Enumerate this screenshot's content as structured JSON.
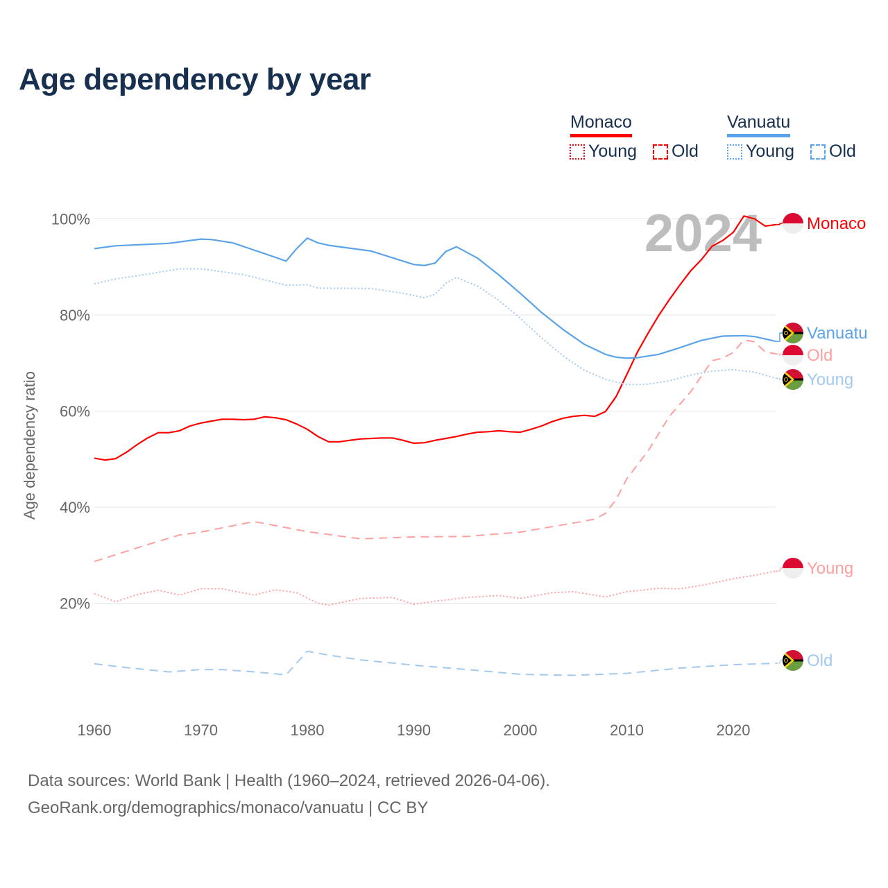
{
  "title": "Age dependency by year",
  "legend": {
    "countries": [
      {
        "name": "Monaco",
        "color": "#ff0000",
        "light": "#ff9f9f"
      },
      {
        "name": "Vanuatu",
        "color": "#5ba3e8",
        "light": "#a3c9f1"
      }
    ],
    "young_label": "Young",
    "old_label": "Old"
  },
  "year_overlay": "2024",
  "footer": {
    "line1": "Data sources: World Bank | Health (1960–2024, retrieved 2026-04-06).",
    "line2": "GeoRank.org/demographics/monaco/vanuatu | CC BY"
  },
  "chart_data": {
    "type": "line",
    "title": "Age dependency by year",
    "xlabel": "",
    "ylabel": "Age dependency ratio",
    "xlim": [
      1960,
      2024
    ],
    "ylim": [
      0,
      100
    ],
    "x_ticks": [
      1960,
      1970,
      1980,
      1990,
      2000,
      2010,
      2020
    ],
    "y_ticks": [
      20,
      40,
      60,
      80,
      100
    ],
    "y_tick_labels": [
      "20%",
      "40%",
      "60%",
      "80%",
      "100%"
    ],
    "grid": true,
    "legend_position": "top-right",
    "series": [
      {
        "name": "Monaco",
        "style": "solid",
        "end_label": "Monaco",
        "points": [
          [
            1960,
            50.2
          ],
          [
            1961,
            49.8
          ],
          [
            1962,
            50.1
          ],
          [
            1963,
            51.4
          ],
          [
            1964,
            53
          ],
          [
            1965,
            54.4
          ],
          [
            1966,
            55.5
          ],
          [
            1967,
            55.5
          ],
          [
            1968,
            55.9
          ],
          [
            1969,
            56.9
          ],
          [
            1970,
            57.5
          ],
          [
            1971,
            57.9
          ],
          [
            1972,
            58.3
          ],
          [
            1973,
            58.3
          ],
          [
            1974,
            58.2
          ],
          [
            1975,
            58.3
          ],
          [
            1976,
            58.8
          ],
          [
            1977,
            58.6
          ],
          [
            1978,
            58.2
          ],
          [
            1979,
            57.3
          ],
          [
            1980,
            56.2
          ],
          [
            1981,
            54.7
          ],
          [
            1982,
            53.6
          ],
          [
            1983,
            53.6
          ],
          [
            1984,
            53.9
          ],
          [
            1985,
            54.2
          ],
          [
            1986,
            54.3
          ],
          [
            1987,
            54.4
          ],
          [
            1988,
            54.4
          ],
          [
            1989,
            53.9
          ],
          [
            1990,
            53.3
          ],
          [
            1991,
            53.4
          ],
          [
            1992,
            53.9
          ],
          [
            1993,
            54.3
          ],
          [
            1994,
            54.7
          ],
          [
            1995,
            55.2
          ],
          [
            1996,
            55.6
          ],
          [
            1997,
            55.7
          ],
          [
            1998,
            55.9
          ],
          [
            1999,
            55.7
          ],
          [
            2000,
            55.6
          ],
          [
            2001,
            56.2
          ],
          [
            2002,
            56.9
          ],
          [
            2003,
            57.8
          ],
          [
            2004,
            58.5
          ],
          [
            2005,
            58.9
          ],
          [
            2006,
            59.1
          ],
          [
            2007,
            58.9
          ],
          [
            2008,
            59.9
          ],
          [
            2009,
            63
          ],
          [
            2010,
            67.6
          ],
          [
            2011,
            72.3
          ],
          [
            2012,
            76.2
          ],
          [
            2013,
            79.9
          ],
          [
            2014,
            83.2
          ],
          [
            2015,
            86.3
          ],
          [
            2016,
            89.2
          ],
          [
            2017,
            91.5
          ],
          [
            2018,
            94.3
          ],
          [
            2019,
            95.5
          ],
          [
            2020,
            97.2
          ],
          [
            2021,
            100.6
          ],
          [
            2022,
            100
          ],
          [
            2023,
            98.5
          ],
          [
            2024,
            98.8
          ]
        ]
      },
      {
        "name": "Monaco Old",
        "style": "dashed",
        "end_label": "Old",
        "points": [
          [
            1960,
            28.7
          ],
          [
            1965,
            32.2
          ],
          [
            1968,
            34.2
          ],
          [
            1970,
            34.8
          ],
          [
            1975,
            37
          ],
          [
            1980,
            34.9
          ],
          [
            1985,
            33.4
          ],
          [
            1990,
            33.8
          ],
          [
            1995,
            33.9
          ],
          [
            2000,
            34.8
          ],
          [
            2005,
            36.7
          ],
          [
            2007,
            37.5
          ],
          [
            2008,
            38.7
          ],
          [
            2009,
            41.6
          ],
          [
            2010,
            45.9
          ],
          [
            2012,
            51.7
          ],
          [
            2014,
            58.9
          ],
          [
            2016,
            64
          ],
          [
            2018,
            70.5
          ],
          [
            2019,
            71
          ],
          [
            2020,
            72.2
          ],
          [
            2021,
            74.8
          ],
          [
            2022,
            74.4
          ],
          [
            2023,
            72.3
          ],
          [
            2024,
            71.9
          ]
        ]
      },
      {
        "name": "Monaco Young",
        "style": "dotted",
        "end_label": "Young",
        "points": [
          [
            1960,
            22
          ],
          [
            1962,
            20.3
          ],
          [
            1964,
            21.8
          ],
          [
            1966,
            22.7
          ],
          [
            1968,
            21.7
          ],
          [
            1970,
            23
          ],
          [
            1972,
            23
          ],
          [
            1975,
            21.7
          ],
          [
            1977,
            22.8
          ],
          [
            1979,
            22.2
          ],
          [
            1981,
            20
          ],
          [
            1982,
            19.6
          ],
          [
            1985,
            21
          ],
          [
            1988,
            21.2
          ],
          [
            1990,
            19.8
          ],
          [
            1992,
            20.4
          ],
          [
            1995,
            21.2
          ],
          [
            1998,
            21.6
          ],
          [
            2000,
            21
          ],
          [
            2003,
            22.2
          ],
          [
            2005,
            22.4
          ],
          [
            2008,
            21.3
          ],
          [
            2010,
            22.4
          ],
          [
            2013,
            23.1
          ],
          [
            2015,
            23
          ],
          [
            2017,
            23.7
          ],
          [
            2020,
            25.1
          ],
          [
            2022,
            25.8
          ],
          [
            2024,
            26.7
          ]
        ]
      },
      {
        "name": "Vanuatu",
        "style": "solid",
        "end_label": "Vanuatu",
        "points": [
          [
            1960,
            93.8
          ],
          [
            1962,
            94.4
          ],
          [
            1967,
            94.9
          ],
          [
            1970,
            95.8
          ],
          [
            1971,
            95.7
          ],
          [
            1973,
            95
          ],
          [
            1975,
            93.5
          ],
          [
            1977,
            92
          ],
          [
            1978,
            91.2
          ],
          [
            1979,
            93.8
          ],
          [
            1980,
            96
          ],
          [
            1981,
            95
          ],
          [
            1982,
            94.5
          ],
          [
            1986,
            93.3
          ],
          [
            1990,
            90.5
          ],
          [
            1991,
            90.3
          ],
          [
            1992,
            90.8
          ],
          [
            1993,
            93.2
          ],
          [
            1994,
            94.2
          ],
          [
            1996,
            91.8
          ],
          [
            1998,
            88.3
          ],
          [
            2000,
            84.5
          ],
          [
            2002,
            80.5
          ],
          [
            2004,
            77
          ],
          [
            2006,
            73.9
          ],
          [
            2008,
            71.8
          ],
          [
            2009,
            71.2
          ],
          [
            2010,
            71
          ],
          [
            2011,
            71.1
          ],
          [
            2013,
            71.8
          ],
          [
            2015,
            73.2
          ],
          [
            2017,
            74.7
          ],
          [
            2019,
            75.6
          ],
          [
            2021,
            75.7
          ],
          [
            2022,
            75.5
          ],
          [
            2023,
            75
          ],
          [
            2024,
            74.5
          ]
        ]
      },
      {
        "name": "Vanuatu Young",
        "style": "dotted",
        "end_label": "Young",
        "points": [
          [
            1960,
            86.5
          ],
          [
            1962,
            87.5
          ],
          [
            1965,
            88.5
          ],
          [
            1968,
            89.6
          ],
          [
            1970,
            89.6
          ],
          [
            1974,
            88.4
          ],
          [
            1978,
            86.2
          ],
          [
            1980,
            86.3
          ],
          [
            1981,
            85.6
          ],
          [
            1986,
            85.5
          ],
          [
            1989,
            84.5
          ],
          [
            1991,
            83.6
          ],
          [
            1992,
            84.3
          ],
          [
            1993,
            86.6
          ],
          [
            1994,
            87.8
          ],
          [
            1996,
            86
          ],
          [
            1998,
            83
          ],
          [
            2000,
            79.3
          ],
          [
            2002,
            75.2
          ],
          [
            2004,
            71.5
          ],
          [
            2006,
            68.5
          ],
          [
            2008,
            66.6
          ],
          [
            2010,
            65.5
          ],
          [
            2012,
            65.6
          ],
          [
            2014,
            66.3
          ],
          [
            2016,
            67.5
          ],
          [
            2018,
            68.3
          ],
          [
            2020,
            68.6
          ],
          [
            2022,
            68.1
          ],
          [
            2024,
            66.8
          ]
        ]
      },
      {
        "name": "Vanuatu Old",
        "style": "dashed",
        "end_label": "Old",
        "points": [
          [
            1960,
            7.4
          ],
          [
            1963,
            6.6
          ],
          [
            1967,
            5.7
          ],
          [
            1970,
            6.2
          ],
          [
            1972,
            6.2
          ],
          [
            1975,
            5.7
          ],
          [
            1978,
            5.1
          ],
          [
            1980,
            10
          ],
          [
            1982,
            9.2
          ],
          [
            1985,
            8.2
          ],
          [
            1990,
            7.1
          ],
          [
            1995,
            6.2
          ],
          [
            2000,
            5.2
          ],
          [
            2005,
            5
          ],
          [
            2010,
            5.4
          ],
          [
            2015,
            6.5
          ],
          [
            2020,
            7.2
          ],
          [
            2024,
            7.5
          ]
        ]
      }
    ]
  }
}
